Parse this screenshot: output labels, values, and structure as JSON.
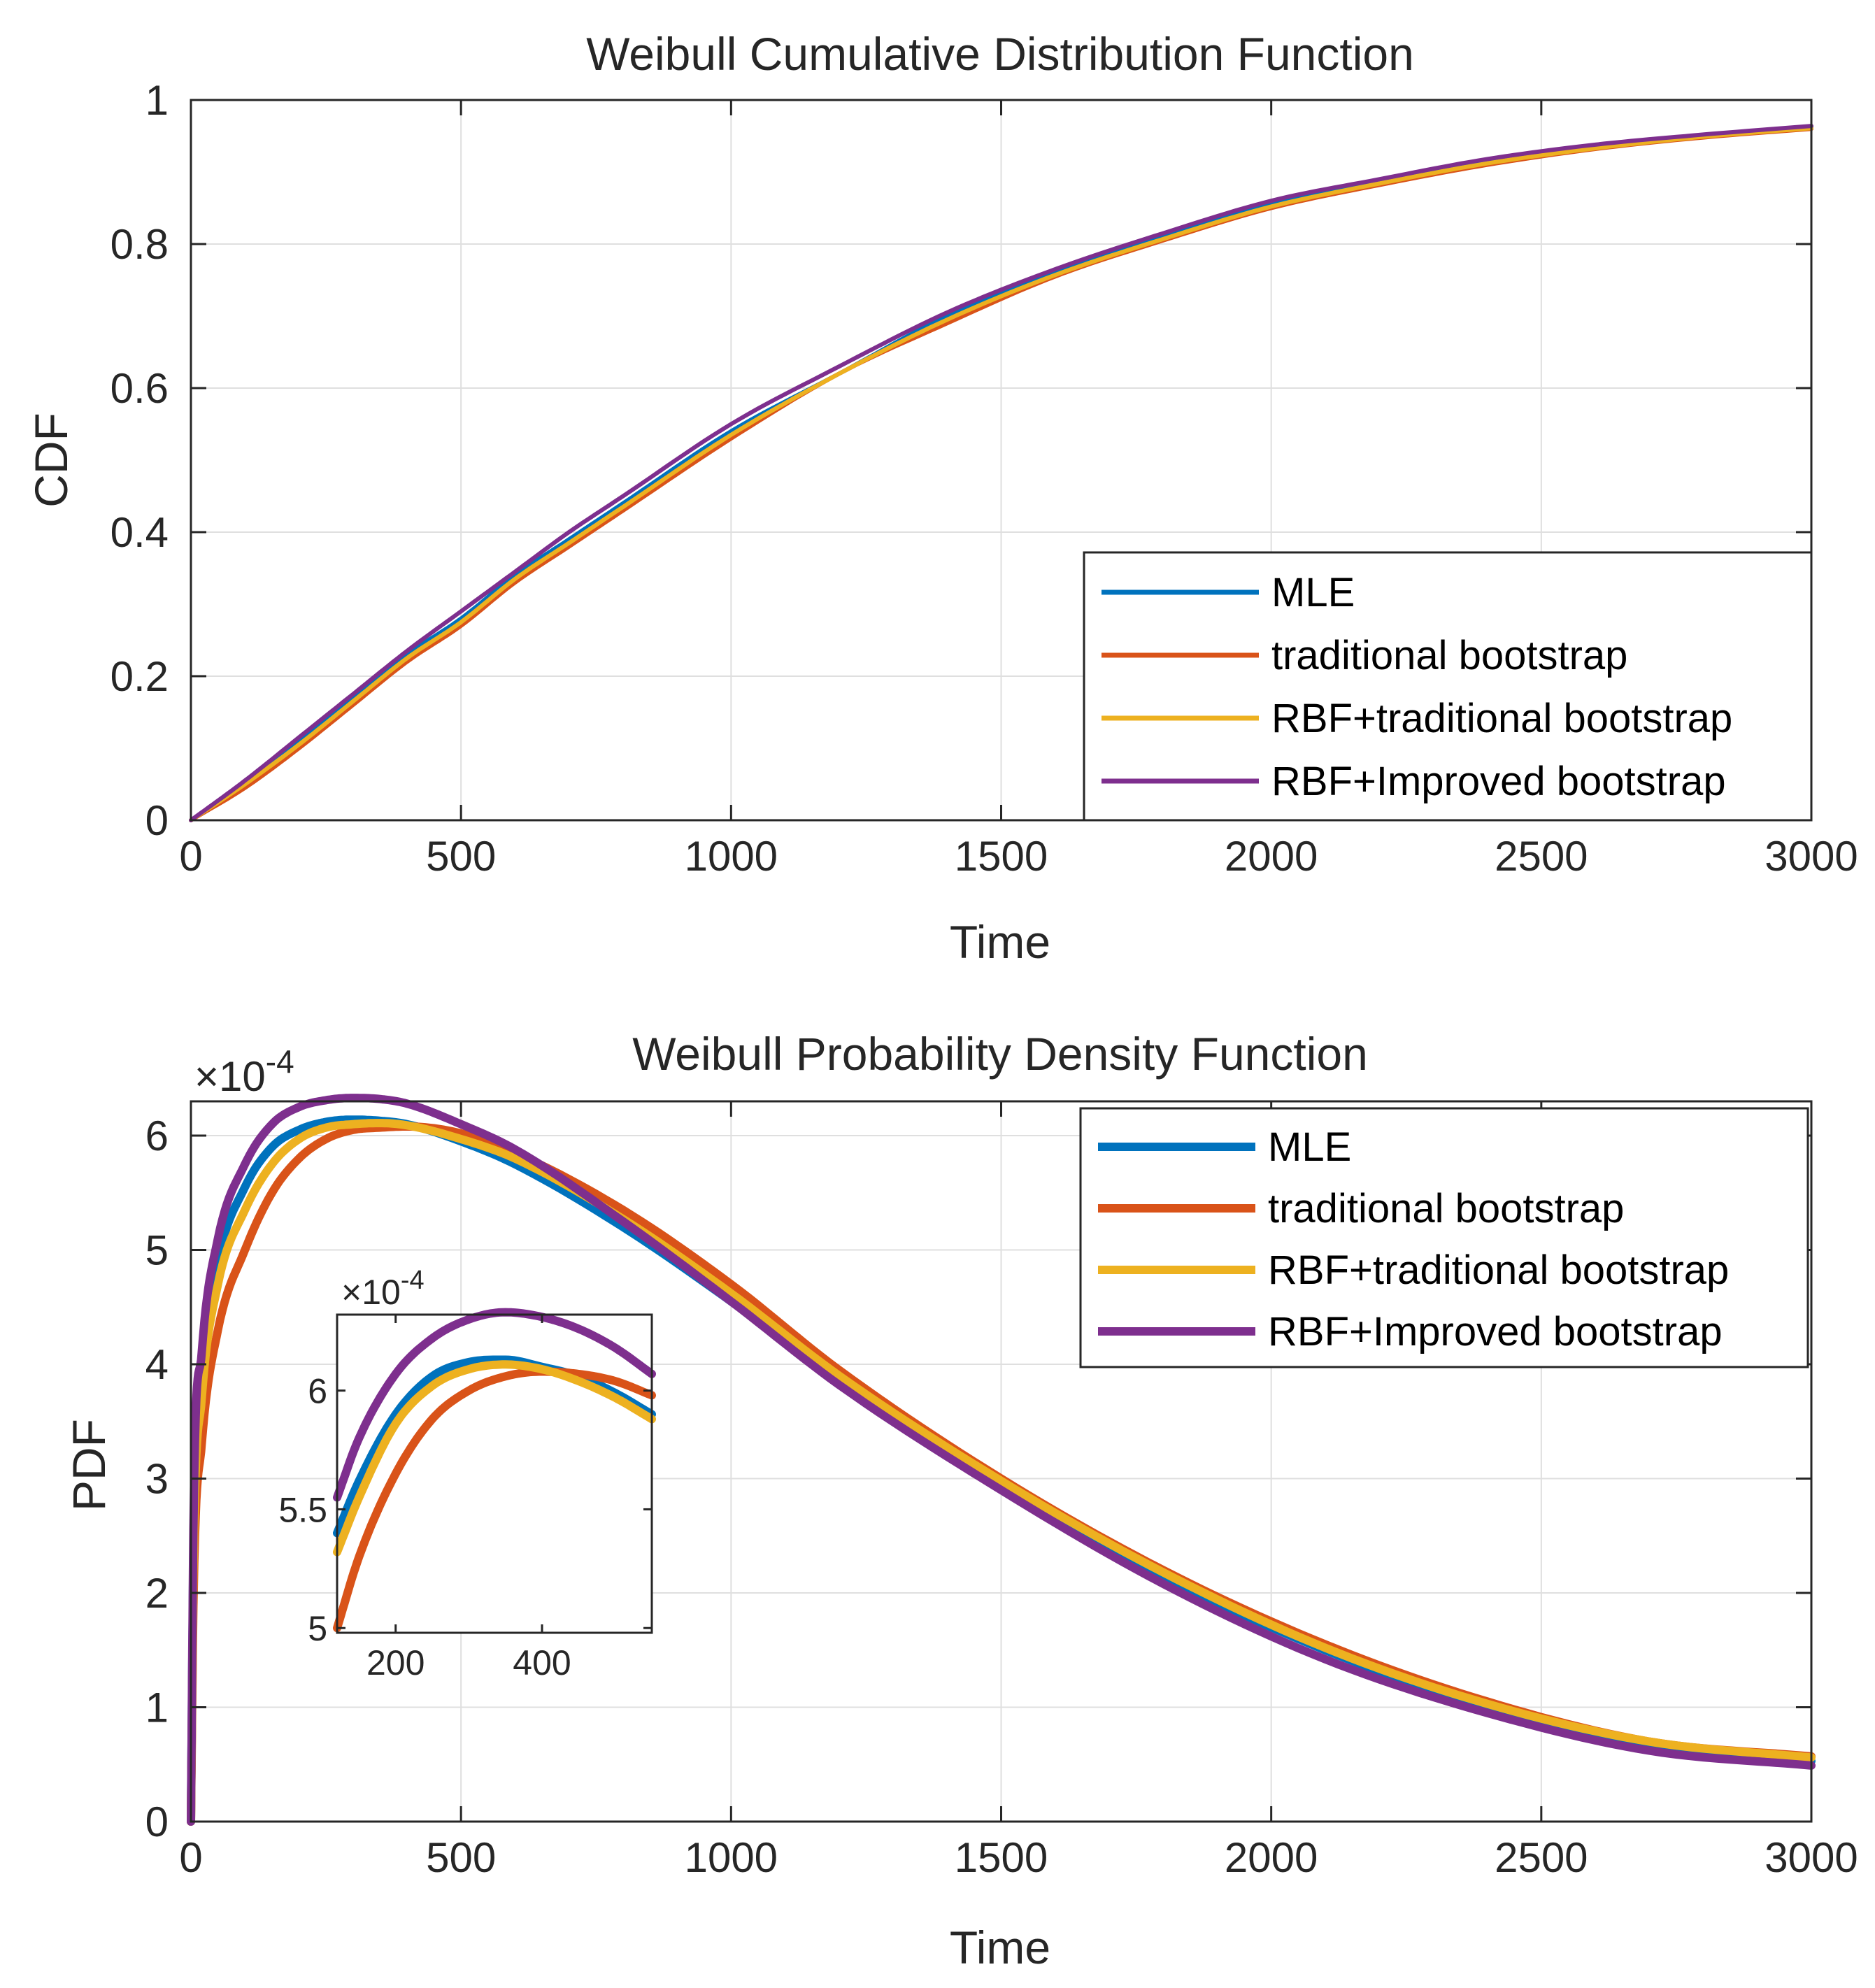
{
  "chart_data": [
    {
      "id": "cdf",
      "type": "line",
      "title": "Weibull Cumulative Distribution Function",
      "xlabel": "Time",
      "ylabel": "CDF",
      "xlim": [
        0,
        3000
      ],
      "ylim": [
        0,
        1
      ],
      "xticks": [
        0,
        500,
        1000,
        1500,
        2000,
        2500,
        3000
      ],
      "yticks": [
        0,
        0.2,
        0.4,
        0.6,
        0.8,
        1
      ],
      "xtick_labels": [
        "0",
        "500",
        "1000",
        "1500",
        "2000",
        "2500",
        "3000"
      ],
      "ytick_labels": [
        "0",
        "0.2",
        "0.4",
        "0.6",
        "0.8",
        "1"
      ],
      "grid": true,
      "legend_position": "bottom-right",
      "series": [
        {
          "name": "MLE",
          "color": "#0072BD",
          "x": [
            0,
            100,
            200,
            300,
            400,
            500,
            600,
            700,
            800,
            1000,
            1200,
            1400,
            1600,
            1800,
            2000,
            2200,
            2400,
            2600,
            2800,
            3000
          ],
          "values": [
            0,
            0.05,
            0.11,
            0.17,
            0.23,
            0.28,
            0.34,
            0.39,
            0.44,
            0.54,
            0.62,
            0.7,
            0.76,
            0.81,
            0.855,
            0.885,
            0.915,
            0.935,
            0.95,
            0.962
          ]
        },
        {
          "name": "traditional bootstrap",
          "color": "#D95319",
          "x": [
            0,
            100,
            200,
            300,
            400,
            500,
            600,
            700,
            800,
            1000,
            1200,
            1400,
            1600,
            1800,
            2000,
            2200,
            2400,
            2600,
            2800,
            3000
          ],
          "values": [
            0,
            0.045,
            0.1,
            0.16,
            0.22,
            0.27,
            0.33,
            0.38,
            0.43,
            0.53,
            0.62,
            0.69,
            0.755,
            0.805,
            0.85,
            0.882,
            0.91,
            0.932,
            0.948,
            0.96
          ]
        },
        {
          "name": "RBF+traditional bootstrap",
          "color": "#EDB120",
          "x": [
            0,
            100,
            200,
            300,
            400,
            500,
            600,
            700,
            800,
            1000,
            1200,
            1400,
            1600,
            1800,
            2000,
            2200,
            2400,
            2600,
            2800,
            3000
          ],
          "values": [
            0,
            0.05,
            0.105,
            0.165,
            0.225,
            0.275,
            0.335,
            0.385,
            0.435,
            0.535,
            0.62,
            0.695,
            0.757,
            0.807,
            0.852,
            0.884,
            0.912,
            0.933,
            0.949,
            0.961
          ]
        },
        {
          "name": "RBF+Improved bootstrap",
          "color": "#7E2F8E",
          "x": [
            0,
            100,
            200,
            300,
            400,
            500,
            600,
            700,
            800,
            1000,
            1200,
            1400,
            1600,
            1800,
            2000,
            2200,
            2400,
            2600,
            2800,
            3000
          ],
          "values": [
            0,
            0.055,
            0.115,
            0.175,
            0.235,
            0.29,
            0.345,
            0.4,
            0.45,
            0.55,
            0.63,
            0.705,
            0.765,
            0.815,
            0.86,
            0.89,
            0.918,
            0.938,
            0.952,
            0.964
          ]
        }
      ]
    },
    {
      "id": "pdf",
      "type": "line",
      "title": "Weibull Probability Density Function",
      "xlabel": "Time",
      "ylabel": "PDF",
      "exponent_label": "×10",
      "exponent_power": "-4",
      "xlim": [
        0,
        3000
      ],
      "ylim": [
        0,
        6.3
      ],
      "xticks": [
        0,
        500,
        1000,
        1500,
        2000,
        2500,
        3000
      ],
      "yticks": [
        0,
        1,
        2,
        3,
        4,
        5,
        6
      ],
      "xtick_labels": [
        "0",
        "500",
        "1000",
        "1500",
        "2000",
        "2500",
        "3000"
      ],
      "ytick_labels": [
        "0",
        "1",
        "2",
        "3",
        "4",
        "5",
        "6"
      ],
      "grid": true,
      "legend_position": "top-right",
      "series": [
        {
          "name": "MLE",
          "color": "#0072BD",
          "x": [
            0,
            5,
            20,
            50,
            100,
            150,
            200,
            250,
            300,
            350,
            400,
            500,
            600,
            800,
            1000,
            1200,
            1500,
            1800,
            2100,
            2400,
            2700,
            3000
          ],
          "values": [
            0,
            2.5,
            3.9,
            4.9,
            5.55,
            5.9,
            6.05,
            6.12,
            6.14,
            6.13,
            6.1,
            5.95,
            5.75,
            5.2,
            4.55,
            3.85,
            2.95,
            2.15,
            1.5,
            1.0,
            0.66,
            0.53
          ]
        },
        {
          "name": "traditional bootstrap",
          "color": "#D95319",
          "x": [
            0,
            5,
            20,
            50,
            100,
            150,
            200,
            250,
            300,
            350,
            400,
            500,
            600,
            800,
            1000,
            1200,
            1500,
            1800,
            2100,
            2400,
            2700,
            3000
          ],
          "values": [
            0,
            2.0,
            3.3,
            4.3,
            5.0,
            5.5,
            5.8,
            5.97,
            6.05,
            6.07,
            6.08,
            6.02,
            5.85,
            5.35,
            4.7,
            3.95,
            3.0,
            2.2,
            1.55,
            1.05,
            0.7,
            0.57
          ]
        },
        {
          "name": "RBF+traditional bootstrap",
          "color": "#EDB120",
          "x": [
            0,
            5,
            20,
            50,
            100,
            150,
            200,
            250,
            300,
            350,
            400,
            500,
            600,
            800,
            1000,
            1200,
            1500,
            1800,
            2100,
            2400,
            2700,
            3000
          ],
          "values": [
            0,
            2.3,
            3.7,
            4.7,
            5.35,
            5.75,
            5.97,
            6.07,
            6.1,
            6.11,
            6.09,
            5.97,
            5.8,
            5.27,
            4.62,
            3.9,
            2.98,
            2.18,
            1.52,
            1.03,
            0.7,
            0.56
          ]
        },
        {
          "name": "RBF+Improved bootstrap",
          "color": "#7E2F8E",
          "x": [
            0,
            5,
            20,
            50,
            100,
            150,
            200,
            250,
            300,
            350,
            400,
            500,
            600,
            800,
            1000,
            1200,
            1500,
            1800,
            2100,
            2400,
            2700,
            3000
          ],
          "values": [
            0,
            2.7,
            4.1,
            5.1,
            5.75,
            6.1,
            6.25,
            6.31,
            6.33,
            6.32,
            6.28,
            6.1,
            5.88,
            5.25,
            4.55,
            3.82,
            2.9,
            2.08,
            1.42,
            0.95,
            0.62,
            0.49
          ]
        }
      ]
    },
    {
      "id": "pdf-inset",
      "type": "line",
      "exponent_label": "×10",
      "exponent_power": "-4",
      "xlim": [
        120,
        550
      ],
      "ylim": [
        4.98,
        6.32
      ],
      "xticks": [
        200,
        400
      ],
      "yticks": [
        5,
        5.5,
        6
      ],
      "xtick_labels": [
        "200",
        "400"
      ],
      "ytick_labels": [
        "5",
        "5.5",
        "6"
      ],
      "grid": false,
      "series": [
        {
          "name": "MLE",
          "color": "#0072BD",
          "x": [
            120,
            150,
            200,
            250,
            300,
            350,
            400,
            450,
            500,
            550
          ],
          "values": [
            5.4,
            5.62,
            5.9,
            6.06,
            6.12,
            6.13,
            6.1,
            6.06,
            5.99,
            5.9
          ]
        },
        {
          "name": "traditional bootstrap",
          "color": "#D95319",
          "x": [
            120,
            150,
            200,
            250,
            300,
            350,
            400,
            450,
            500,
            550
          ],
          "values": [
            5.0,
            5.3,
            5.65,
            5.88,
            6.0,
            6.06,
            6.08,
            6.07,
            6.04,
            5.98
          ]
        },
        {
          "name": "RBF+traditional bootstrap",
          "color": "#EDB120",
          "x": [
            120,
            150,
            200,
            250,
            300,
            350,
            400,
            450,
            500,
            550
          ],
          "values": [
            5.32,
            5.55,
            5.86,
            6.02,
            6.09,
            6.11,
            6.09,
            6.04,
            5.97,
            5.88
          ]
        },
        {
          "name": "RBF+Improved bootstrap",
          "color": "#7E2F8E",
          "x": [
            120,
            150,
            200,
            250,
            300,
            350,
            400,
            450,
            500,
            550
          ],
          "values": [
            5.55,
            5.8,
            6.07,
            6.22,
            6.3,
            6.33,
            6.31,
            6.26,
            6.18,
            6.07
          ]
        }
      ]
    }
  ]
}
